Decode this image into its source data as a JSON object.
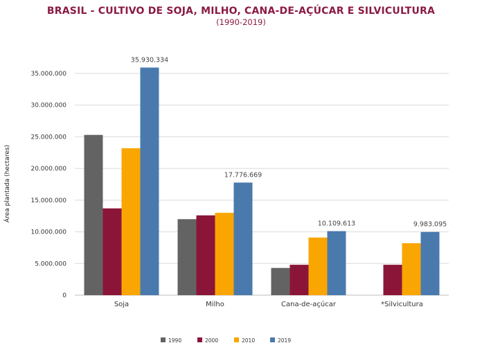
{
  "title": "BRASIL - CULTIVO DE SOJA, MILHO, CANA-DE-AÇÚCAR E SILVICULTURA",
  "subtitle": "(1990-2019)",
  "chart_data": {
    "type": "bar",
    "categories": [
      "Soja",
      "Milho",
      "Cana-de-açúcar",
      "*Silvicultura"
    ],
    "series": [
      {
        "name": "1990",
        "color": "#636363",
        "values": [
          25300000,
          12000000,
          4300000,
          null
        ]
      },
      {
        "name": "2000",
        "color": "#8b1538",
        "values": [
          13700000,
          12600000,
          4800000,
          4800000
        ]
      },
      {
        "name": "2010",
        "color": "#f9a602",
        "values": [
          23200000,
          13000000,
          9100000,
          8200000
        ]
      },
      {
        "name": "2019",
        "color": "#4a7aad",
        "values": [
          35930334,
          17776669,
          10109613,
          9983095
        ]
      }
    ],
    "data_labels": [
      "35.930.334",
      "17.776.669",
      "10.109.613",
      "9.983.095"
    ],
    "ylabel": "Área plantada (hectares)",
    "ylim": [
      0,
      35000000
    ],
    "yticks": [
      "0",
      "5.000.000",
      "10.000.000",
      "15.000.000",
      "20.000.000",
      "25.000.000",
      "30.000.000",
      "35.000.000"
    ],
    "grid": true,
    "legend_position": "bottom"
  }
}
